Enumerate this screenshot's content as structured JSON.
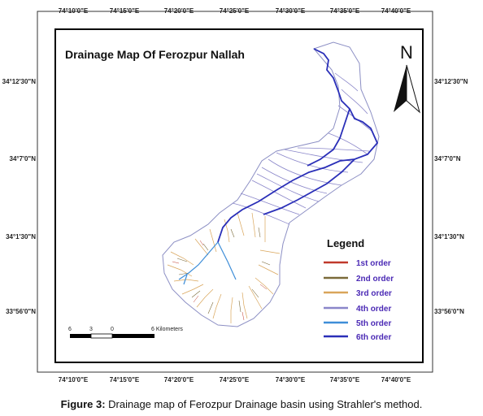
{
  "map": {
    "title": "Drainage Map Of Ferozpur Nallah",
    "north_label": "N",
    "top_ticks": [
      "74°10'0\"E",
      "74°15'0\"E",
      "74°20'0\"E",
      "74°25'0\"E",
      "74°30'0\"E",
      "74°35'0\"E",
      "74°40'0\"E"
    ],
    "bottom_ticks": [
      "74°10'0\"E",
      "74°15'0\"E",
      "74°20'0\"E",
      "74°25'0\"E",
      "74°30'0\"E",
      "74°35'0\"E",
      "74°40'0\"E"
    ],
    "left_ticks": [
      "34°12'30\"N",
      "34°7'0\"N",
      "34°1'30\"N",
      "33°56'0\"N"
    ],
    "right_ticks": [
      "34°12'30\"N",
      "34°7'0\"N",
      "34°1'30\"N",
      "33°56'0\"N"
    ],
    "scale": {
      "labels": [
        "6",
        "3",
        "0",
        "6 Kilometers"
      ]
    },
    "legend": {
      "title": "Legend",
      "items": [
        {
          "label": "1st order",
          "color": "#c0392b"
        },
        {
          "label": "2nd order",
          "color": "#7a6a3a"
        },
        {
          "label": "3rd order",
          "color": "#d9a55a"
        },
        {
          "label": "4th order",
          "color": "#8a86c9"
        },
        {
          "label": "5th order",
          "color": "#3e8ed8"
        },
        {
          "label": "6th order",
          "color": "#2a2fb8"
        }
      ]
    }
  },
  "caption": {
    "prefix": "Figure 3:",
    "text": " Drainage map of Ferozpur Drainage basin using Strahler's method."
  }
}
